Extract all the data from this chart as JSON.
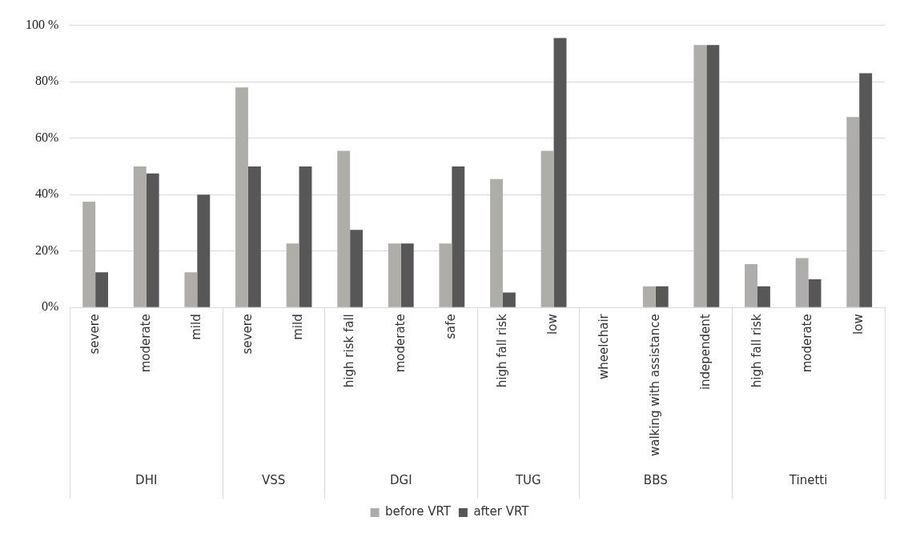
{
  "chart_data": {
    "type": "bar",
    "categories": [
      "severe",
      "moderate",
      "mild",
      "severe",
      "mild",
      "high risk fall",
      "moderate",
      "safe",
      "high fall risk",
      "low",
      "wheelchair",
      "walking with assistance",
      "independent",
      "high fall risk",
      "moderate",
      "low"
    ],
    "series": [
      {
        "name": "before VRT",
        "color": "#aeada9",
        "values": [
          37.5,
          50,
          12.5,
          78,
          22.7,
          55.5,
          22.7,
          22.7,
          45.5,
          55.5,
          0,
          7.5,
          93,
          15.4,
          17.5,
          67.5
        ]
      },
      {
        "name": "after VRT",
        "color": "#575757",
        "values": [
          12.5,
          47.5,
          40,
          50,
          50,
          27.5,
          22.7,
          50,
          5.3,
          95.5,
          0,
          7.5,
          93,
          7.5,
          10,
          83
        ]
      }
    ],
    "ylim": [
      0,
      100
    ],
    "yticks": [
      {
        "value": 0,
        "label": "0%"
      },
      {
        "value": 20,
        "label": "20%"
      },
      {
        "value": 40,
        "label": "40%"
      },
      {
        "value": 60,
        "label": "60%"
      },
      {
        "value": 80,
        "label": "80%"
      },
      {
        "value": 100,
        "label": "100 %"
      }
    ],
    "annotations": [
      "DHI",
      "VSS",
      "DGI",
      "TUG",
      "BBS",
      "Tinetti"
    ],
    "grid": "y",
    "legend": "bottom"
  }
}
